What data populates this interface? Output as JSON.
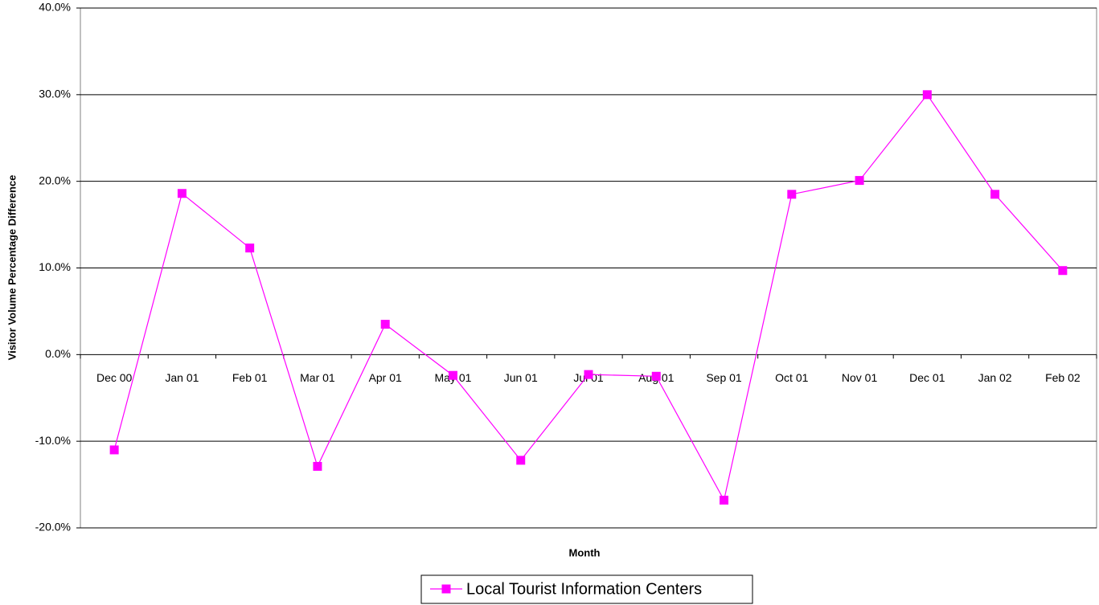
{
  "chart_data": {
    "type": "line",
    "x_label": "Month",
    "y_label": "Visitor Volume Percentage Difference",
    "categories": [
      "Dec 00",
      "Jan 01",
      "Feb 01",
      "Mar 01",
      "Apr 01",
      "May 01",
      "Jun 01",
      "Jul 01",
      "Aug 01",
      "Sep 01",
      "Oct 01",
      "Nov 01",
      "Dec 01",
      "Jan 02",
      "Feb 02"
    ],
    "series": [
      {
        "name": "Local Tourist Information Centers",
        "color": "#ff00ff",
        "values": [
          -11.0,
          18.6,
          12.3,
          -12.9,
          3.5,
          -2.4,
          -12.2,
          -2.3,
          -2.5,
          -16.8,
          18.5,
          20.1,
          30.0,
          18.5,
          9.7
        ]
      }
    ],
    "ylim": [
      -20,
      40
    ],
    "yticks": [
      {
        "value": -20,
        "label": "-20.0%"
      },
      {
        "value": -10,
        "label": "-10.0%"
      },
      {
        "value": 0,
        "label": "0.0%"
      },
      {
        "value": 10,
        "label": "10.0%"
      },
      {
        "value": 20,
        "label": "20.0%"
      },
      {
        "value": 30,
        "label": "30.0%"
      },
      {
        "value": 40,
        "label": "40.0%"
      }
    ],
    "grid": true,
    "legend": "bottom"
  }
}
